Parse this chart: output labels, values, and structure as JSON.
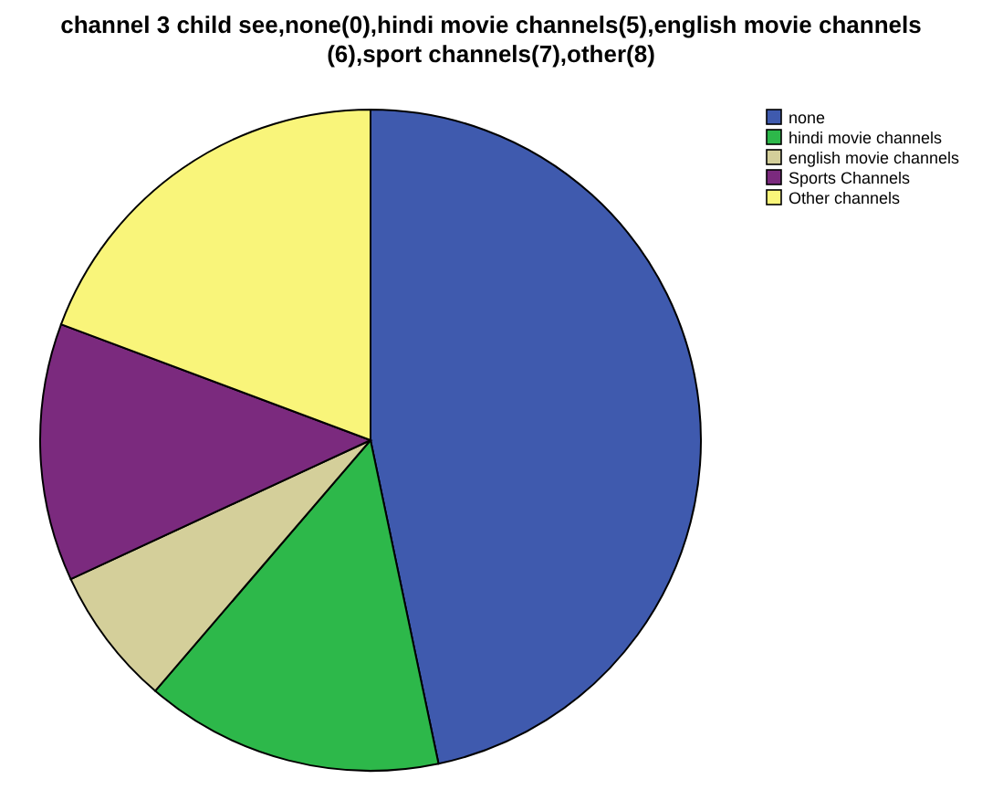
{
  "chart_data": {
    "type": "pie",
    "title": "channel 3 child see,none(0),hindi movie channels(5),english movie channels (6),sport channels(7),other(8)",
    "categories": [
      "none",
      "hindi movie channels",
      "english movie channels",
      "Sports Channels",
      "Other channels"
    ],
    "values": [
      46.7,
      14.6,
      6.8,
      12.6,
      19.3
    ],
    "colors": [
      "#3f5aae",
      "#2db84a",
      "#d4cf9a",
      "#7b2a7e",
      "#f9f57a"
    ],
    "legend": "top right"
  }
}
